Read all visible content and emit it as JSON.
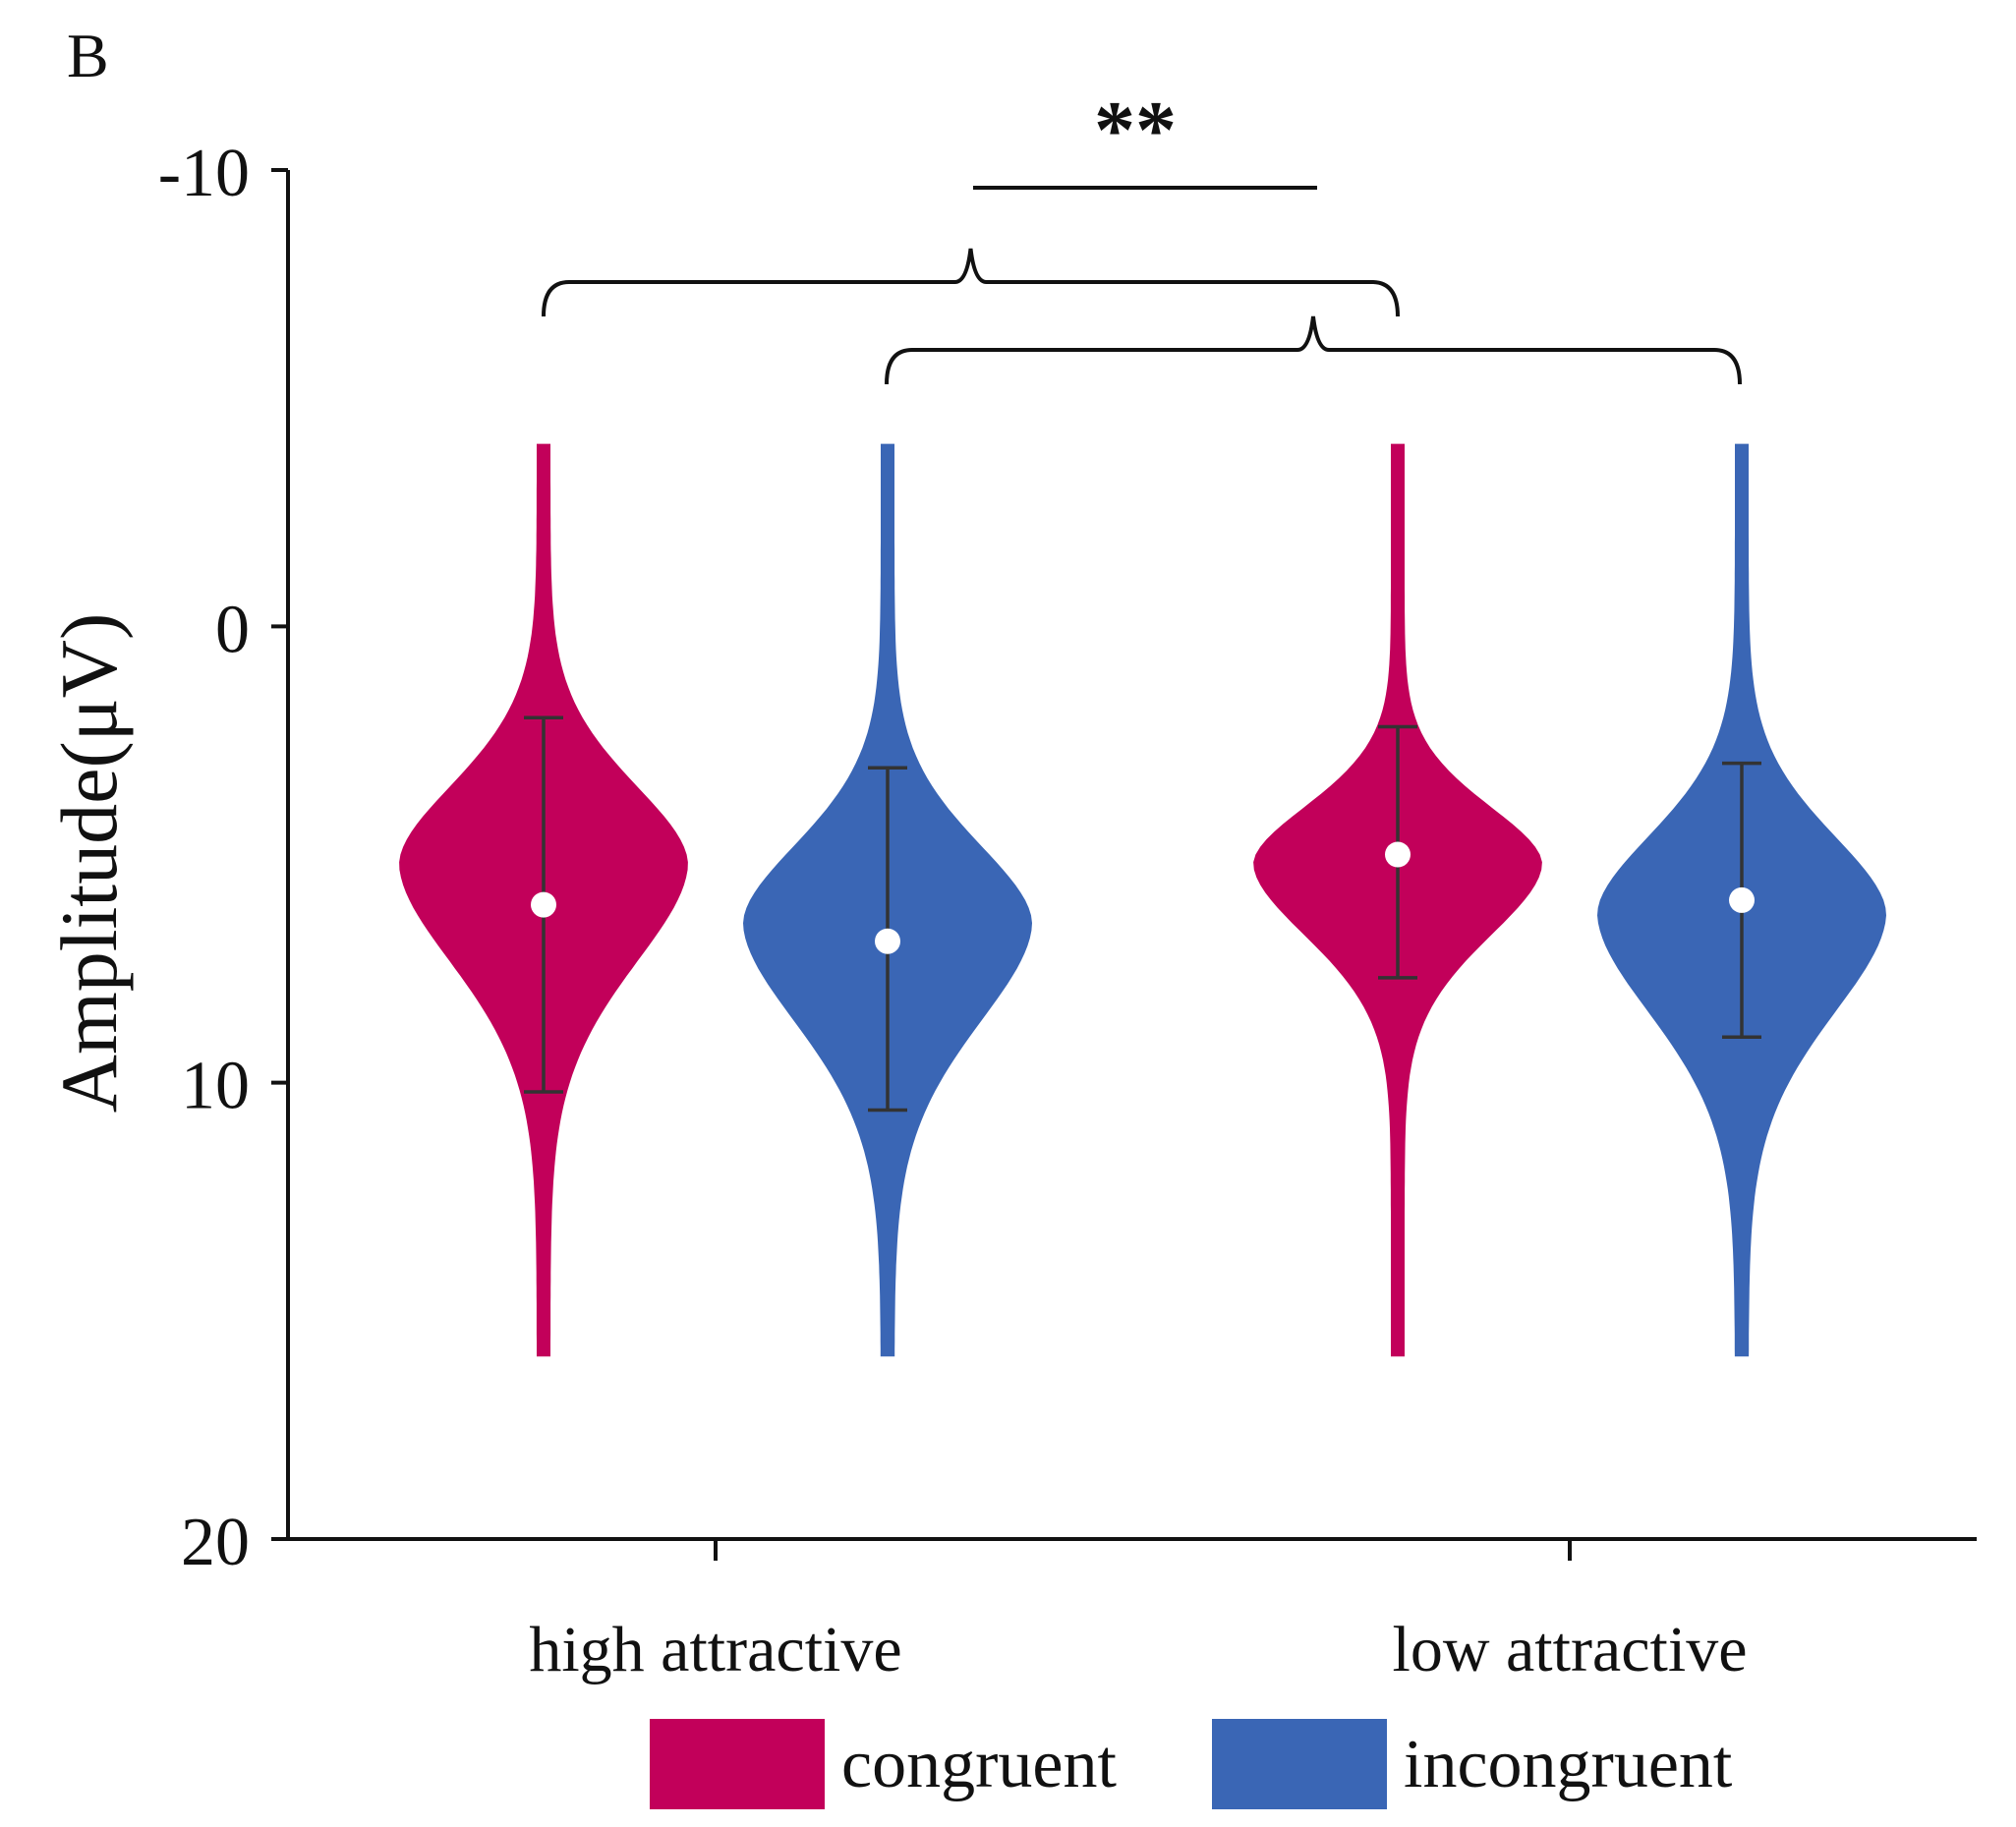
{
  "panel_label": "B",
  "colors": {
    "congruent": "#c2005a",
    "incongruent": "#3a66b5",
    "axis": "#111111",
    "errorbar": "#333333"
  },
  "chart_data": {
    "type": "violin",
    "ylabel": "Amplitude(μV)",
    "y_axis_inverted": true,
    "ylim": [
      -10,
      20
    ],
    "yticks": [
      {
        "value": -10,
        "label": "-10"
      },
      {
        "value": 0,
        "label": "0"
      },
      {
        "value": 10,
        "label": "10"
      },
      {
        "value": 20,
        "label": "20"
      }
    ],
    "categories": [
      "high attractive",
      "low attractive"
    ],
    "series": [
      {
        "name": "congruent",
        "color": "#c2005a",
        "values": [
          {
            "category": "high attractive",
            "mean": 6.1,
            "err_low": 2.0,
            "err_high": 10.2,
            "min": -4.0,
            "max": 16.0,
            "mode": 5.2,
            "shape": "wide"
          },
          {
            "category": "low attractive",
            "mean": 5.0,
            "err_low": 2.2,
            "err_high": 7.7,
            "min": -4.0,
            "max": 16.0,
            "mode": 5.2,
            "shape": "narrow"
          }
        ]
      },
      {
        "name": "incongruent",
        "color": "#3a66b5",
        "values": [
          {
            "category": "high attractive",
            "mean": 6.9,
            "err_low": 3.1,
            "err_high": 10.6,
            "min": -4.0,
            "max": 16.0,
            "mode": 6.5,
            "shape": "wide"
          },
          {
            "category": "low attractive",
            "mean": 6.0,
            "err_low": 3.0,
            "err_high": 9.0,
            "min": -4.0,
            "max": 16.0,
            "mode": 6.3,
            "shape": "wide"
          }
        ]
      }
    ],
    "significance": {
      "label": "**",
      "comparison": [
        "congruent",
        "incongruent"
      ]
    },
    "legend": [
      "congruent",
      "incongruent"
    ],
    "legend_position": "bottom-center",
    "grid": false
  }
}
